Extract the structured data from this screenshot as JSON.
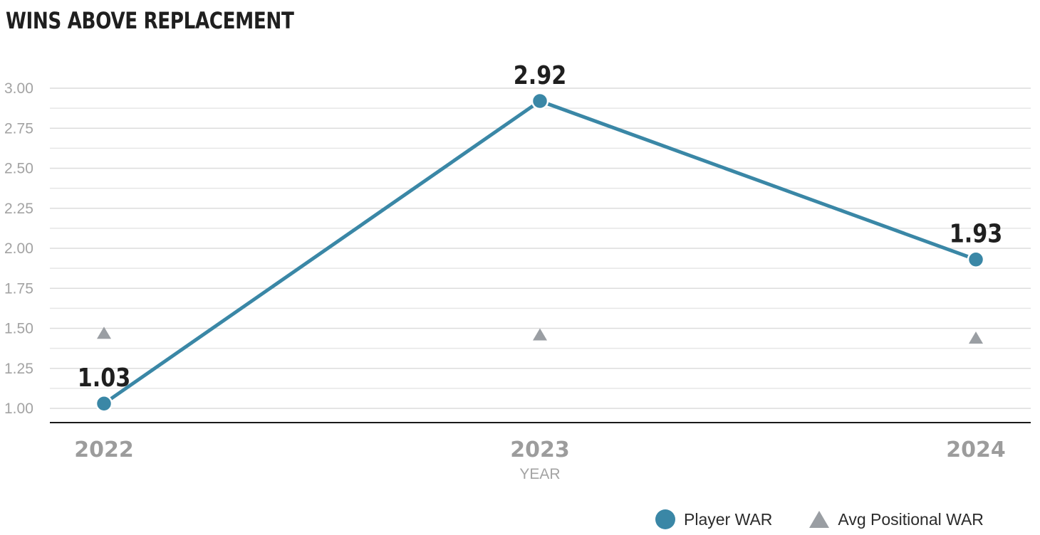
{
  "title": "WINS ABOVE REPLACEMENT",
  "chart_data": {
    "type": "line",
    "title": "WINS ABOVE REPLACEMENT",
    "xlabel": "YEAR",
    "ylabel": "",
    "categories": [
      "2022",
      "2023",
      "2024"
    ],
    "ylim": [
      1.0,
      3.0
    ],
    "yticks": [
      "1.00",
      "1.25",
      "1.50",
      "1.75",
      "2.00",
      "2.25",
      "2.50",
      "2.75",
      "3.00"
    ],
    "grid": true,
    "legend_position": "bottom-right",
    "series": [
      {
        "name": "Player WAR",
        "marker": "circle",
        "color": "#3a87a6",
        "values": [
          1.03,
          2.92,
          1.93
        ],
        "labels": [
          "1.03",
          "2.92",
          "1.93"
        ]
      },
      {
        "name": "Avg Positional WAR",
        "marker": "triangle",
        "color": "#9a9ea3",
        "values": [
          1.47,
          1.46,
          1.44
        ]
      }
    ]
  },
  "legend": {
    "player": "Player WAR",
    "positional": "Avg Positional WAR"
  }
}
